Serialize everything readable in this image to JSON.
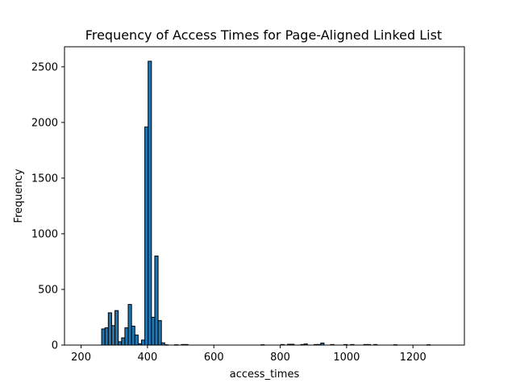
{
  "chart_data": {
    "type": "bar",
    "title": "Frequency of Access Times for Page-Aligned Linked List",
    "xlabel": "access_times",
    "ylabel": "Frequency",
    "xlim": [
      150,
      1355
    ],
    "ylim": [
      0,
      2680
    ],
    "xticks": [
      200,
      400,
      600,
      800,
      1000,
      1200
    ],
    "yticks": [
      0,
      500,
      1000,
      1500,
      2000,
      2500
    ],
    "bin_width": 10,
    "grid": false,
    "colors": {
      "bar_fill": "#1f77b4",
      "bar_edge": "#000000"
    },
    "bins": [
      {
        "x": 262,
        "count": 145
      },
      {
        "x": 272,
        "count": 155
      },
      {
        "x": 282,
        "count": 290
      },
      {
        "x": 292,
        "count": 175
      },
      {
        "x": 302,
        "count": 310
      },
      {
        "x": 312,
        "count": 30
      },
      {
        "x": 322,
        "count": 65
      },
      {
        "x": 332,
        "count": 155
      },
      {
        "x": 342,
        "count": 365
      },
      {
        "x": 352,
        "count": 170
      },
      {
        "x": 362,
        "count": 90
      },
      {
        "x": 372,
        "count": 12
      },
      {
        "x": 382,
        "count": 45
      },
      {
        "x": 392,
        "count": 1960
      },
      {
        "x": 402,
        "count": 2550
      },
      {
        "x": 412,
        "count": 250
      },
      {
        "x": 422,
        "count": 800
      },
      {
        "x": 432,
        "count": 220
      },
      {
        "x": 442,
        "count": 20
      },
      {
        "x": 452,
        "count": 3
      },
      {
        "x": 482,
        "count": 3
      },
      {
        "x": 502,
        "count": 5
      },
      {
        "x": 512,
        "count": 5
      },
      {
        "x": 742,
        "count": 3
      },
      {
        "x": 802,
        "count": 5
      },
      {
        "x": 822,
        "count": 7
      },
      {
        "x": 832,
        "count": 7
      },
      {
        "x": 862,
        "count": 5
      },
      {
        "x": 872,
        "count": 10
      },
      {
        "x": 902,
        "count": 5
      },
      {
        "x": 912,
        "count": 5
      },
      {
        "x": 922,
        "count": 18
      },
      {
        "x": 952,
        "count": 5
      },
      {
        "x": 992,
        "count": 5
      },
      {
        "x": 1012,
        "count": 5
      },
      {
        "x": 1052,
        "count": 5
      },
      {
        "x": 1062,
        "count": 5
      },
      {
        "x": 1082,
        "count": 5
      },
      {
        "x": 1142,
        "count": 3
      },
      {
        "x": 1242,
        "count": 3
      }
    ]
  }
}
